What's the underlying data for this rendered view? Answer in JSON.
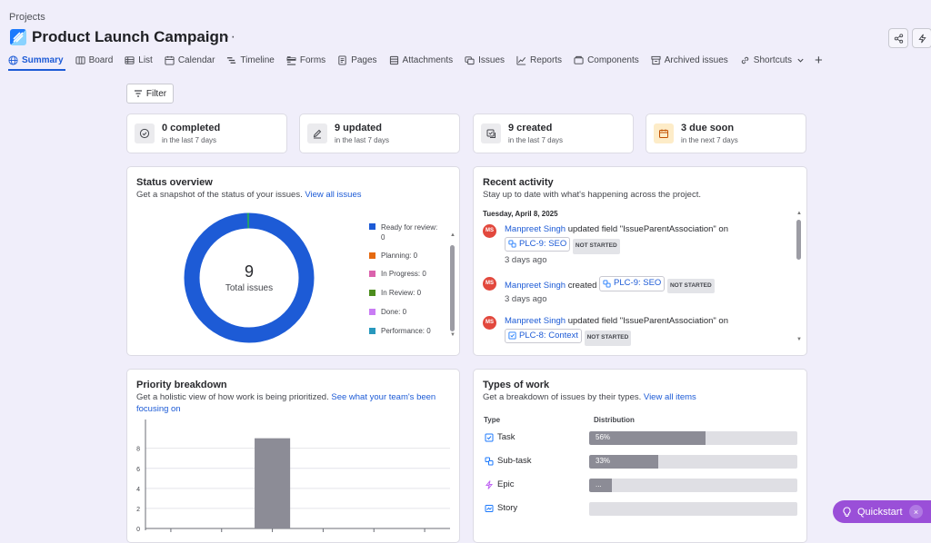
{
  "header": {
    "breadcrumb": "Projects",
    "title": "Product Launch Campaign",
    "more": "···"
  },
  "tabs": [
    {
      "label": "Summary",
      "icon": "globe-icon"
    },
    {
      "label": "Board",
      "icon": "board-icon"
    },
    {
      "label": "List",
      "icon": "list-icon"
    },
    {
      "label": "Calendar",
      "icon": "calendar-icon"
    },
    {
      "label": "Timeline",
      "icon": "timeline-icon"
    },
    {
      "label": "Forms",
      "icon": "forms-icon"
    },
    {
      "label": "Pages",
      "icon": "pages-icon"
    },
    {
      "label": "Attachments",
      "icon": "attachments-icon"
    },
    {
      "label": "Issues",
      "icon": "issues-icon"
    },
    {
      "label": "Reports",
      "icon": "reports-icon"
    },
    {
      "label": "Components",
      "icon": "components-icon"
    },
    {
      "label": "Archived issues",
      "icon": "archive-icon"
    },
    {
      "label": "Shortcuts",
      "icon": "link-icon"
    }
  ],
  "filter": {
    "label": "Filter"
  },
  "stats": [
    {
      "value": "0 completed",
      "sub": "in the last 7 days",
      "icon": "check-circle-icon"
    },
    {
      "value": "9 updated",
      "sub": "in the last 7 days",
      "icon": "pencil-icon"
    },
    {
      "value": "9 created",
      "sub": "in the last 7 days",
      "icon": "created-icon"
    },
    {
      "value": "3 due soon",
      "sub": "in the next 7 days",
      "icon": "calendar-icon"
    }
  ],
  "status": {
    "title": "Status overview",
    "desc": "Get a snapshot of the status of your issues.",
    "link": "View all issues",
    "total": "9",
    "total_label": "Total issues",
    "legend": [
      {
        "label": "Ready for review: 0",
        "color": "#1d5bd6"
      },
      {
        "label": "Planning: 0",
        "color": "#e56910"
      },
      {
        "label": "In Progress: 0",
        "color": "#da62ac"
      },
      {
        "label": "In Review: 0",
        "color": "#4c8d1d"
      },
      {
        "label": "Done: 0",
        "color": "#c97cf4"
      },
      {
        "label": "Performance: 0",
        "color": "#2898bd"
      }
    ]
  },
  "activity": {
    "title": "Recent activity",
    "desc": "Stay up to date with what's happening across the project.",
    "date": "Tuesday, April 8, 2025",
    "items": [
      {
        "avatar": "MS",
        "user": "Manpreet Singh",
        "action": "updated field \"IssueParentAssociation\" on",
        "issue": "PLC-9: SEO",
        "status": "NOT STARTED",
        "time": "3 days ago"
      },
      {
        "avatar": "MS",
        "user": "Manpreet Singh",
        "action": "created",
        "issue": "PLC-9: SEO",
        "status": "NOT STARTED",
        "time": "3 days ago"
      },
      {
        "avatar": "MS",
        "user": "Manpreet Singh",
        "action": "updated field \"IssueParentAssociation\" on",
        "issue": "PLC-8: Context",
        "status": "NOT STARTED",
        "time": ""
      }
    ]
  },
  "priority": {
    "title": "Priority breakdown",
    "desc": "Get a holistic view of how work is being prioritized.",
    "link": "See what your team's been focusing on"
  },
  "types": {
    "title": "Types of work",
    "desc": "Get a breakdown of issues by their types.",
    "link": "View all items",
    "col_type": "Type",
    "col_dist": "Distribution",
    "rows": [
      {
        "label": "Task",
        "value": "56%",
        "fraction": 0.56,
        "icon": "task-icon"
      },
      {
        "label": "Sub-task",
        "value": "33%",
        "fraction": 0.33,
        "icon": "subtask-icon"
      },
      {
        "label": "Epic",
        "value": "...",
        "fraction": 0.11,
        "icon": "epic-icon"
      },
      {
        "label": "Story",
        "value": "",
        "fraction": 0,
        "icon": "story-icon"
      }
    ]
  },
  "chart_data": {
    "type": "bar",
    "title": "",
    "categories": [
      "",
      "",
      "",
      "",
      "",
      ""
    ],
    "values": [
      0,
      0,
      9,
      0,
      0,
      0
    ],
    "ylim": [
      0,
      10
    ],
    "yticks": [
      "0",
      "2",
      "4",
      "6",
      "8"
    ],
    "grid": true,
    "bar_color": "#8c8c96"
  },
  "quickstart": {
    "label": "Quickstart",
    "close": "×"
  }
}
